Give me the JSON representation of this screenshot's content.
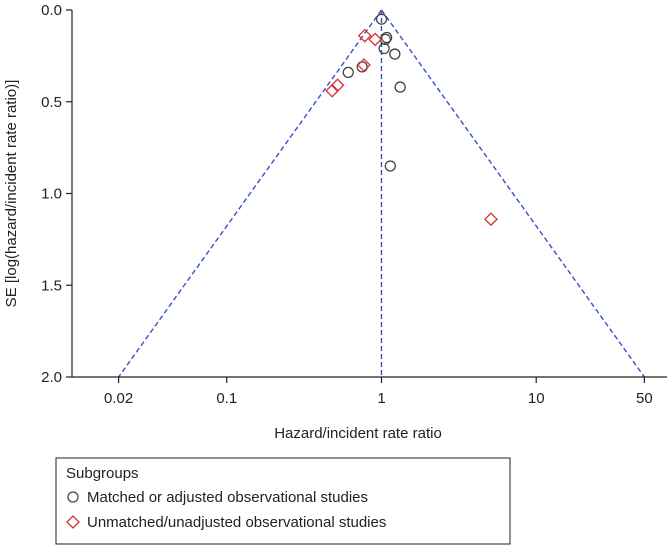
{
  "chart_data": {
    "type": "scatter",
    "title": "",
    "xlabel": "Hazard/incident rate ratio",
    "ylabel": "SE [log(hazard/incident rate ratio)]",
    "xscale": "log",
    "xlim": [
      0.01,
      70
    ],
    "ylim": [
      0.0,
      2.0
    ],
    "y_inverted": true,
    "x_ticks": [
      0.02,
      0.1,
      1,
      10,
      50
    ],
    "x_tick_labels": [
      "0.02",
      "0.1",
      "1",
      "10",
      "50"
    ],
    "y_ticks": [
      0.0,
      0.5,
      1.0,
      1.5,
      2.0
    ],
    "y_tick_labels": [
      "0.0",
      "0.5",
      "1.0",
      "1.5",
      "2.0"
    ],
    "pooled_estimate": 1.0,
    "funnel_limits": {
      "apex_se": 0.0,
      "base_se": 2.0,
      "left_x": 0.02,
      "right_x": 50
    },
    "legend": {
      "title": "Subgroups",
      "placement": "bottom-left",
      "entries": [
        "Matched or adjusted observational studies",
        "Unmatched/unadjusted observational studies"
      ]
    },
    "series": [
      {
        "name": "Matched or adjusted observational studies",
        "marker": "circle",
        "color": "#444444",
        "points": [
          {
            "x": 1.0,
            "se": 0.05
          },
          {
            "x": 1.08,
            "se": 0.15
          },
          {
            "x": 1.06,
            "se": 0.16
          },
          {
            "x": 1.04,
            "se": 0.21
          },
          {
            "x": 1.22,
            "se": 0.24
          },
          {
            "x": 0.75,
            "se": 0.31
          },
          {
            "x": 0.61,
            "se": 0.34
          },
          {
            "x": 1.32,
            "se": 0.42
          },
          {
            "x": 1.14,
            "se": 0.85
          }
        ]
      },
      {
        "name": "Unmatched/unadjusted observational studies",
        "marker": "diamond",
        "color": "#d93030",
        "points": [
          {
            "x": 0.78,
            "se": 0.14
          },
          {
            "x": 0.91,
            "se": 0.16
          },
          {
            "x": 0.77,
            "se": 0.3
          },
          {
            "x": 0.52,
            "se": 0.41
          },
          {
            "x": 0.48,
            "se": 0.44
          },
          {
            "x": 5.1,
            "se": 1.14
          }
        ]
      }
    ],
    "colors": {
      "funnel_line": "#3a4fc4",
      "axis": "#222222",
      "circle_marker": "#444444",
      "diamond_marker": "#d93030"
    }
  }
}
